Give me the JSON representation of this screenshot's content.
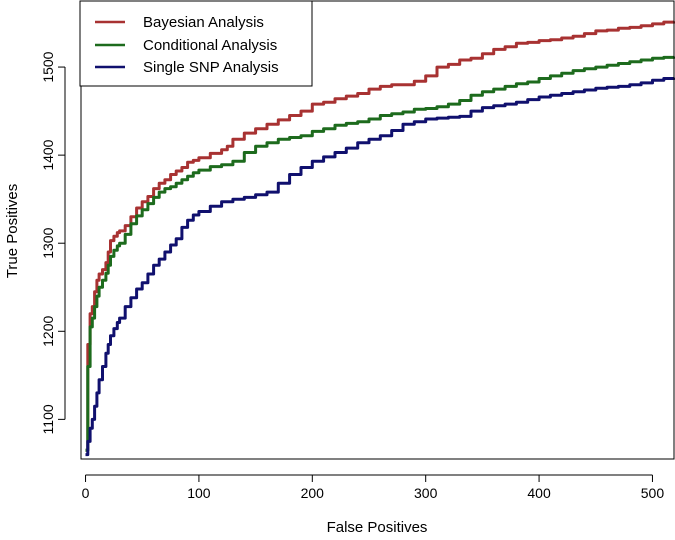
{
  "chart_data": {
    "type": "line",
    "title": "",
    "xlabel": "False Positives",
    "ylabel": "True Positives",
    "xlim": [
      -4,
      519
    ],
    "ylim": [
      1055,
      1575
    ],
    "xticks": [
      0,
      100,
      200,
      300,
      400,
      500
    ],
    "yticks": [
      1100,
      1200,
      1300,
      1400,
      1500
    ],
    "legend_position": "top-left",
    "series": [
      {
        "name": "Bayesian Analysis",
        "color": "#a83232",
        "x": [
          0,
          2,
          4,
          6,
          8,
          10,
          12,
          15,
          18,
          20,
          22,
          25,
          28,
          30,
          35,
          40,
          45,
          50,
          55,
          60,
          65,
          70,
          75,
          80,
          85,
          90,
          95,
          100,
          110,
          120,
          125,
          130,
          140,
          150,
          160,
          170,
          180,
          190,
          200,
          210,
          220,
          230,
          240,
          250,
          260,
          270,
          280,
          290,
          300,
          310,
          320,
          330,
          340,
          350,
          360,
          370,
          380,
          390,
          400,
          410,
          420,
          430,
          440,
          450,
          460,
          470,
          480,
          490,
          500,
          510,
          519
        ],
        "values": [
          1065,
          1185,
          1220,
          1228,
          1245,
          1258,
          1265,
          1270,
          1278,
          1290,
          1303,
          1308,
          1312,
          1314,
          1320,
          1330,
          1340,
          1347,
          1353,
          1362,
          1368,
          1372,
          1378,
          1382,
          1386,
          1392,
          1394,
          1397,
          1402,
          1406,
          1410,
          1418,
          1425,
          1430,
          1435,
          1440,
          1445,
          1450,
          1458,
          1460,
          1464,
          1467,
          1470,
          1475,
          1478,
          1480,
          1480,
          1484,
          1490,
          1500,
          1503,
          1508,
          1510,
          1515,
          1520,
          1523,
          1527,
          1528,
          1530,
          1531,
          1533,
          1535,
          1538,
          1541,
          1542,
          1544,
          1545,
          1547,
          1549,
          1551,
          1552
        ]
      },
      {
        "name": "Conditional Analysis",
        "color": "#1d6b1d",
        "x": [
          0,
          2,
          4,
          6,
          8,
          10,
          12,
          15,
          18,
          20,
          22,
          25,
          28,
          30,
          35,
          40,
          45,
          50,
          55,
          60,
          65,
          70,
          75,
          80,
          85,
          90,
          95,
          100,
          110,
          120,
          130,
          140,
          150,
          160,
          170,
          180,
          190,
          200,
          210,
          220,
          230,
          240,
          250,
          260,
          270,
          280,
          290,
          300,
          310,
          320,
          330,
          340,
          350,
          360,
          370,
          380,
          390,
          400,
          410,
          420,
          430,
          440,
          450,
          460,
          470,
          480,
          490,
          500,
          510,
          519
        ],
        "values": [
          1065,
          1160,
          1205,
          1215,
          1228,
          1240,
          1250,
          1258,
          1266,
          1275,
          1285,
          1292,
          1297,
          1300,
          1310,
          1322,
          1331,
          1338,
          1345,
          1352,
          1358,
          1362,
          1364,
          1368,
          1372,
          1376,
          1380,
          1383,
          1387,
          1389,
          1393,
          1403,
          1410,
          1414,
          1418,
          1420,
          1422,
          1427,
          1430,
          1434,
          1436,
          1438,
          1441,
          1445,
          1447,
          1449,
          1452,
          1453,
          1455,
          1458,
          1462,
          1468,
          1472,
          1475,
          1478,
          1481,
          1483,
          1487,
          1490,
          1493,
          1496,
          1498,
          1500,
          1502,
          1504,
          1506,
          1508,
          1510,
          1511,
          1512
        ]
      },
      {
        "name": "Single SNP Analysis",
        "color": "#10106e",
        "x": [
          0,
          2,
          4,
          6,
          8,
          10,
          12,
          15,
          18,
          20,
          22,
          25,
          28,
          30,
          35,
          40,
          45,
          50,
          55,
          60,
          65,
          70,
          75,
          80,
          85,
          90,
          95,
          100,
          110,
          120,
          130,
          140,
          150,
          160,
          170,
          180,
          190,
          200,
          210,
          220,
          230,
          240,
          250,
          260,
          270,
          280,
          290,
          300,
          310,
          320,
          330,
          340,
          350,
          360,
          370,
          380,
          390,
          400,
          410,
          420,
          430,
          440,
          450,
          460,
          470,
          480,
          490,
          500,
          510,
          519
        ],
        "values": [
          1060,
          1075,
          1090,
          1100,
          1115,
          1130,
          1145,
          1160,
          1175,
          1185,
          1195,
          1203,
          1210,
          1215,
          1228,
          1238,
          1248,
          1255,
          1265,
          1275,
          1282,
          1290,
          1298,
          1305,
          1318,
          1326,
          1332,
          1336,
          1342,
          1347,
          1350,
          1352,
          1355,
          1358,
          1368,
          1378,
          1386,
          1393,
          1398,
          1403,
          1408,
          1414,
          1418,
          1422,
          1428,
          1435,
          1438,
          1441,
          1442,
          1443,
          1444,
          1450,
          1454,
          1456,
          1458,
          1460,
          1463,
          1466,
          1468,
          1470,
          1472,
          1474,
          1476,
          1477,
          1478,
          1480,
          1482,
          1485,
          1487,
          1488
        ]
      }
    ]
  }
}
